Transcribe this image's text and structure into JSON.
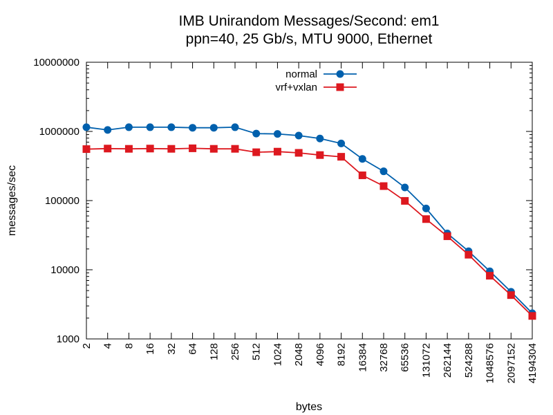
{
  "chart_data": {
    "type": "line",
    "title_line1": "IMB Unirandom Messages/Second: em1",
    "title_line2": "ppn=40, 25 Gb/s, MTU 9000, Ethernet",
    "xlabel": "bytes",
    "ylabel": "messages/sec",
    "x_scale": "log2",
    "y_scale": "log10",
    "x_ticks": [
      2,
      4,
      8,
      16,
      32,
      64,
      128,
      256,
      512,
      1024,
      2048,
      4096,
      8192,
      16384,
      32768,
      65536,
      131072,
      262144,
      524288,
      1048576,
      2097152,
      4194304
    ],
    "x_tick_labels": [
      "2",
      "4",
      "8",
      "16",
      "32",
      "64",
      "128",
      "256",
      "512",
      "1024",
      "2048",
      "4096",
      "8192",
      "16384",
      "32768",
      "65536",
      "131072",
      "262144",
      "524288",
      "1048576",
      "2097152",
      "4194304"
    ],
    "y_ticks": [
      1000,
      10000,
      100000,
      1000000,
      10000000
    ],
    "y_tick_labels": [
      "1000",
      "10000",
      "100000",
      "1000000",
      "10000000"
    ],
    "ylim": [
      1000,
      10000000
    ],
    "legend_position": "top-center",
    "series": [
      {
        "name": "normal",
        "color": "#0060ad",
        "marker": "circle",
        "x": [
          2,
          4,
          8,
          16,
          32,
          64,
          128,
          256,
          512,
          1024,
          2048,
          4096,
          8192,
          16384,
          32768,
          65536,
          131072,
          262144,
          524288,
          1048576,
          2097152,
          4194304
        ],
        "values": [
          1150000,
          1050000,
          1150000,
          1150000,
          1150000,
          1130000,
          1130000,
          1150000,
          930000,
          920000,
          870000,
          790000,
          670000,
          400000,
          265000,
          155000,
          77000,
          33500,
          18500,
          9500,
          4800,
          2350
        ]
      },
      {
        "name": "vrf+vxlan",
        "color": "#dd181f",
        "marker": "square",
        "x": [
          2,
          4,
          8,
          16,
          32,
          64,
          128,
          256,
          512,
          1024,
          2048,
          4096,
          8192,
          16384,
          32768,
          65536,
          131072,
          262144,
          524288,
          1048576,
          2097152,
          4194304
        ],
        "values": [
          555000,
          565000,
          560000,
          565000,
          560000,
          570000,
          560000,
          560000,
          500000,
          510000,
          490000,
          455000,
          430000,
          232000,
          162000,
          99000,
          54000,
          30500,
          16500,
          8200,
          4300,
          2150
        ]
      }
    ]
  }
}
